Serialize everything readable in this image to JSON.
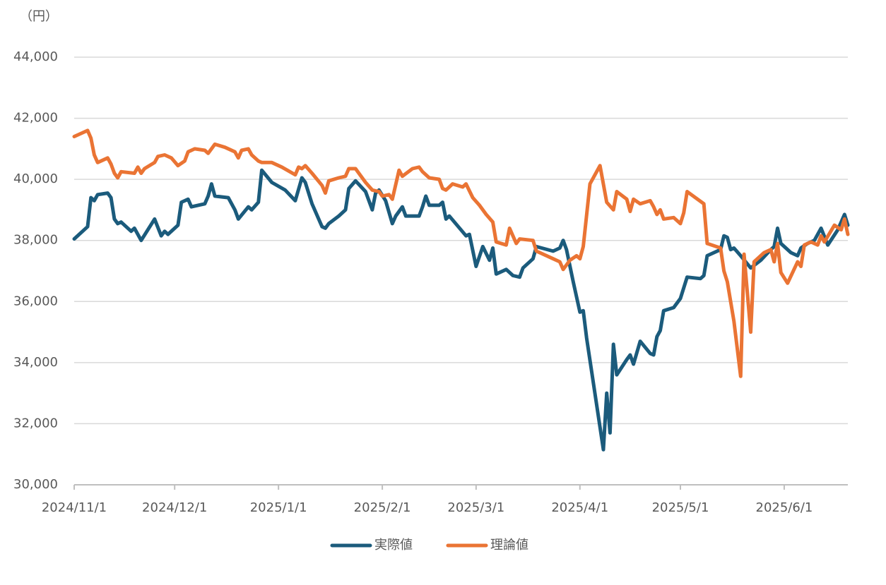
{
  "chart_data": {
    "type": "line",
    "y_label": "（円）",
    "xlim": [
      "2024/11/1",
      "2025/6/20"
    ],
    "xticks": [
      "2024/11/1",
      "2024/12/1",
      "2025/1/1",
      "2025/2/1",
      "2025/3/1",
      "2025/4/1",
      "2025/5/1",
      "2025/6/1"
    ],
    "ylim": [
      30000,
      44000
    ],
    "yticks": [
      {
        "value": 30000,
        "label": "30,000"
      },
      {
        "value": 32000,
        "label": "32,000"
      },
      {
        "value": 34000,
        "label": "34,000"
      },
      {
        "value": 36000,
        "label": "36,000"
      },
      {
        "value": 38000,
        "label": "38,000"
      },
      {
        "value": 40000,
        "label": "40,000"
      },
      {
        "value": 42000,
        "label": "42,000"
      },
      {
        "value": 44000,
        "label": "44,000"
      }
    ],
    "grid": true,
    "legend": "bottom",
    "series": [
      {
        "name": "実際値",
        "color": "#1b5b7c",
        "x": [
          "2024/11/1",
          "2024/11/5",
          "2024/11/6",
          "2024/11/7",
          "2024/11/8",
          "2024/11/11",
          "2024/11/12",
          "2024/11/13",
          "2024/11/14",
          "2024/11/15",
          "2024/11/18",
          "2024/11/19",
          "2024/11/21",
          "2024/11/25",
          "2024/11/27",
          "2024/11/28",
          "2024/11/29",
          "2024/12/2",
          "2024/12/3",
          "2024/12/5",
          "2024/12/6",
          "2024/12/10",
          "2024/12/11",
          "2024/12/12",
          "2024/12/13",
          "2024/12/17",
          "2024/12/19",
          "2024/12/20",
          "2024/12/23",
          "2024/12/24",
          "2024/12/26",
          "2024/12/27",
          "2024/12/30",
          "2025/1/3",
          "2025/1/6",
          "2025/1/8",
          "2025/1/9",
          "2025/1/11",
          "2025/1/14",
          "2025/1/15",
          "2025/1/16",
          "2025/1/19",
          "2025/1/21",
          "2025/1/22",
          "2025/1/24",
          "2025/1/27",
          "2025/1/29",
          "2025/1/30",
          "2025/1/31",
          "2025/2/2",
          "2025/2/4",
          "2025/2/5",
          "2025/2/7",
          "2025/2/8",
          "2025/2/12",
          "2025/2/13",
          "2025/2/14",
          "2025/2/15",
          "2025/2/18",
          "2025/2/19",
          "2025/2/20",
          "2025/2/21",
          "2025/2/26",
          "2025/2/27",
          "2025/3/1",
          "2025/3/3",
          "2025/3/5",
          "2025/3/6",
          "2025/3/7",
          "2025/3/10",
          "2025/3/12",
          "2025/3/14",
          "2025/3/15",
          "2025/3/18",
          "2025/3/19",
          "2025/3/24",
          "2025/3/26",
          "2025/3/27",
          "2025/3/28",
          "2025/3/30",
          "2025/4/1",
          "2025/4/2",
          "2025/4/3",
          "2025/4/8",
          "2025/4/9",
          "2025/4/10",
          "2025/4/11",
          "2025/4/12",
          "2025/4/15",
          "2025/4/16",
          "2025/4/17",
          "2025/4/19",
          "2025/4/22",
          "2025/4/23",
          "2025/4/24",
          "2025/4/25",
          "2025/4/26",
          "2025/4/29",
          "2025/5/1",
          "2025/5/3",
          "2025/5/7",
          "2025/5/8",
          "2025/5/9",
          "2025/5/13",
          "2025/5/14",
          "2025/5/15",
          "2025/5/16",
          "2025/5/17",
          "2025/5/19",
          "2025/5/22",
          "2025/5/25",
          "2025/5/28",
          "2025/5/29",
          "2025/5/30",
          "2025/5/31",
          "2025/6/3",
          "2025/6/5",
          "2025/6/6",
          "2025/6/8",
          "2025/6/10",
          "2025/6/12",
          "2025/6/14",
          "2025/6/17",
          "2025/6/19",
          "2025/6/20"
        ],
        "values": [
          38050,
          38450,
          39400,
          39300,
          39500,
          39550,
          39400,
          38700,
          38550,
          38600,
          38300,
          38400,
          38000,
          38700,
          38150,
          38300,
          38200,
          38500,
          39250,
          39350,
          39100,
          39200,
          39450,
          39850,
          39450,
          39400,
          39000,
          38700,
          39100,
          39000,
          39250,
          40300,
          39900,
          39650,
          39300,
          40050,
          39900,
          39200,
          38450,
          38400,
          38550,
          38800,
          39000,
          39700,
          39950,
          39600,
          39000,
          39550,
          39650,
          39300,
          38550,
          38800,
          39100,
          38800,
          38800,
          39100,
          39450,
          39150,
          39150,
          39250,
          38700,
          38800,
          38150,
          38200,
          37150,
          37800,
          37350,
          37750,
          36900,
          37050,
          36850,
          36800,
          37100,
          37400,
          37800,
          37650,
          37750,
          38000,
          37700,
          36650,
          35650,
          35700,
          34800,
          31150,
          33000,
          31700,
          34600,
          33600,
          34100,
          34250,
          33950,
          34700,
          34300,
          34250,
          34850,
          35050,
          35700,
          35800,
          36100,
          36800,
          36750,
          36850,
          37500,
          37700,
          38150,
          38100,
          37700,
          37750,
          37500,
          37100,
          37350,
          37700,
          37800,
          38400,
          37900,
          37600,
          37500,
          37750,
          37900,
          38000,
          38400,
          37850,
          38350,
          38850,
          38500
        ]
      },
      {
        "name": "理論値",
        "color": "#ea7434",
        "x": [
          "2024/11/1",
          "2024/11/5",
          "2024/11/6",
          "2024/11/7",
          "2024/11/8",
          "2024/11/11",
          "2024/11/12",
          "2024/11/13",
          "2024/11/14",
          "2024/11/15",
          "2024/11/19",
          "2024/11/20",
          "2024/11/21",
          "2024/11/22",
          "2024/11/25",
          "2024/11/26",
          "2024/11/28",
          "2024/11/30",
          "2024/12/2",
          "2024/12/4",
          "2024/12/5",
          "2024/12/7",
          "2024/12/10",
          "2024/12/11",
          "2024/12/13",
          "2024/12/16",
          "2024/12/19",
          "2024/12/20",
          "2024/12/21",
          "2024/12/23",
          "2024/12/24",
          "2024/12/26",
          "2024/12/27",
          "2024/12/30",
          "2025/1/2",
          "2025/1/6",
          "2025/1/7",
          "2025/1/8",
          "2025/1/9",
          "2025/1/11",
          "2025/1/14",
          "2025/1/15",
          "2025/1/16",
          "2025/1/19",
          "2025/1/21",
          "2025/1/22",
          "2025/1/24",
          "2025/1/27",
          "2025/1/29",
          "2025/1/31",
          "2025/2/1",
          "2025/2/3",
          "2025/2/4",
          "2025/2/6",
          "2025/2/7",
          "2025/2/10",
          "2025/2/12",
          "2025/2/13",
          "2025/2/15",
          "2025/2/18",
          "2025/2/19",
          "2025/2/20",
          "2025/2/22",
          "2025/2/25",
          "2025/2/26",
          "2025/2/28",
          "2025/3/2",
          "2025/3/4",
          "2025/3/6",
          "2025/3/7",
          "2025/3/10",
          "2025/3/11",
          "2025/3/13",
          "2025/3/14",
          "2025/3/18",
          "2025/3/19",
          "2025/3/24",
          "2025/3/26",
          "2025/3/27",
          "2025/3/29",
          "2025/3/31",
          "2025/4/1",
          "2025/4/2",
          "2025/4/4",
          "2025/4/7",
          "2025/4/9",
          "2025/4/11",
          "2025/4/12",
          "2025/4/15",
          "2025/4/16",
          "2025/4/17",
          "2025/4/19",
          "2025/4/22",
          "2025/4/23",
          "2025/4/24",
          "2025/4/25",
          "2025/4/26",
          "2025/4/29",
          "2025/5/1",
          "2025/5/2",
          "2025/5/3",
          "2025/5/8",
          "2025/5/9",
          "2025/5/13",
          "2025/5/14",
          "2025/5/15",
          "2025/5/17",
          "2025/5/19",
          "2025/5/20",
          "2025/5/22",
          "2025/5/23",
          "2025/5/26",
          "2025/5/28",
          "2025/5/29",
          "2025/5/30",
          "2025/5/31",
          "2025/6/2",
          "2025/6/5",
          "2025/6/6",
          "2025/6/7",
          "2025/6/9",
          "2025/6/11",
          "2025/6/12",
          "2025/6/13",
          "2025/6/16",
          "2025/6/18",
          "2025/6/19",
          "2025/6/20"
        ],
        "values": [
          41400,
          41600,
          41350,
          40800,
          40550,
          40700,
          40500,
          40200,
          40050,
          40250,
          40200,
          40400,
          40200,
          40350,
          40550,
          40750,
          40800,
          40700,
          40450,
          40600,
          40900,
          41000,
          40950,
          40850,
          41150,
          41050,
          40900,
          40700,
          40950,
          41000,
          40800,
          40600,
          40550,
          40550,
          40400,
          40150,
          40400,
          40350,
          40450,
          40200,
          39800,
          39550,
          39950,
          40050,
          40100,
          40350,
          40350,
          39900,
          39650,
          39600,
          39450,
          39500,
          39350,
          40300,
          40100,
          40350,
          40400,
          40250,
          40050,
          40000,
          39700,
          39650,
          39850,
          39750,
          39850,
          39400,
          39150,
          38850,
          38600,
          37950,
          37850,
          38400,
          37900,
          38050,
          38000,
          37650,
          37400,
          37300,
          37050,
          37350,
          37500,
          37400,
          37800,
          39850,
          40450,
          39250,
          39000,
          39600,
          39350,
          38950,
          39350,
          39200,
          39300,
          39100,
          38850,
          39000,
          38700,
          38750,
          38550,
          38900,
          39600,
          39200,
          37900,
          37750,
          37000,
          36650,
          35350,
          33550,
          37550,
          35000,
          37300,
          37600,
          37700,
          37300,
          37900,
          36950,
          36600,
          37300,
          37150,
          37850,
          37950,
          37850,
          38150,
          37950,
          38500,
          38350,
          38700,
          38200
        ]
      }
    ]
  }
}
